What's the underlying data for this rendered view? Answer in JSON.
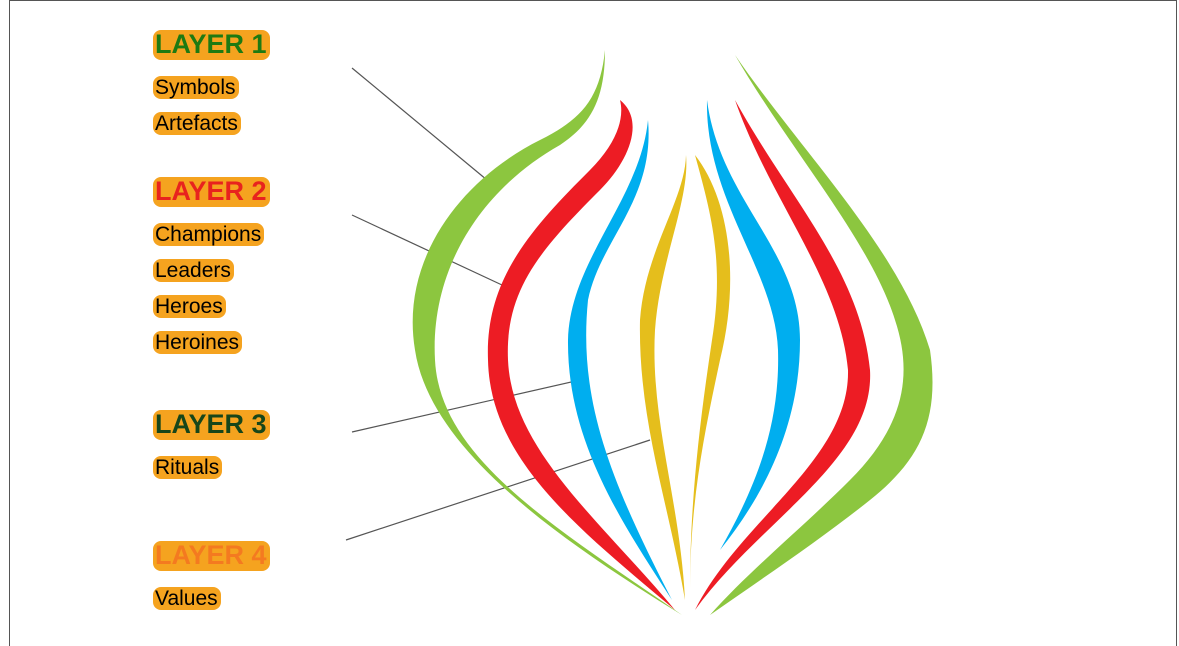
{
  "layers": [
    {
      "title": "LAYER 1",
      "items": [
        "Symbols",
        "Artefacts"
      ]
    },
    {
      "title": "LAYER 2",
      "items": [
        "Champions",
        "Leaders",
        "Heroes",
        "Heroines"
      ]
    },
    {
      "title": "LAYER 3",
      "items": [
        "Rituals"
      ]
    },
    {
      "title": "LAYER 4",
      "items": [
        "Values"
      ]
    }
  ]
}
